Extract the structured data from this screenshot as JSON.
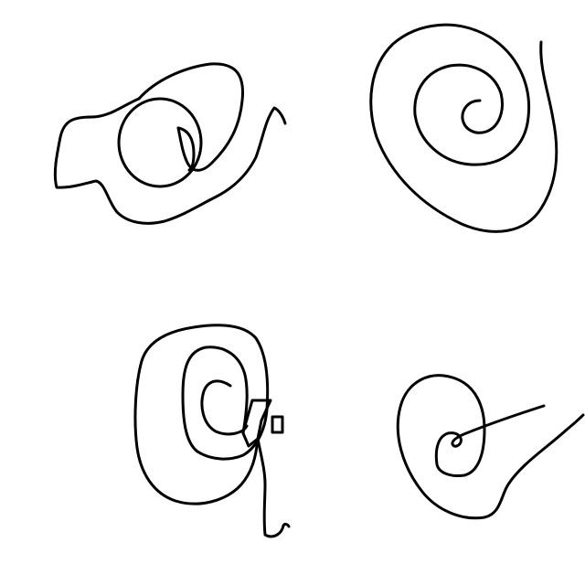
{
  "canvas": {
    "background": "#ffffff",
    "ink_color": "#000000"
  },
  "drawings": [
    {
      "id": "scribble-top-left",
      "description_icon": "loose-scribble-with-circle"
    },
    {
      "id": "spiral-top-right",
      "description_icon": "spiral"
    },
    {
      "id": "spiral-bottom-left",
      "description_icon": "spiral-with-tail"
    },
    {
      "id": "spiral-bottom-right",
      "description_icon": "spiral-with-tail"
    }
  ]
}
